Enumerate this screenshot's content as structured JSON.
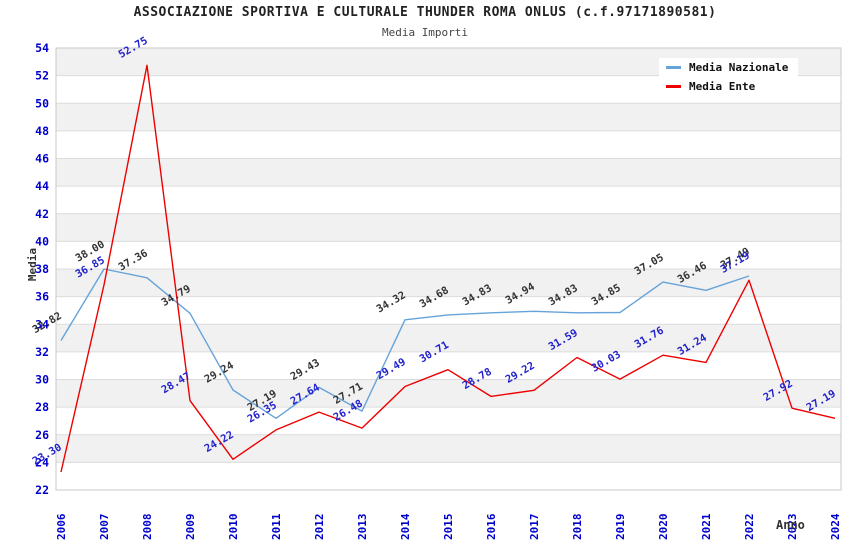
{
  "chart": {
    "title": "ASSOCIAZIONE SPORTIVA E CULTURALE THUNDER ROMA ONLUS (c.f.97171890581)",
    "subtitle": "Media Importi",
    "legend": [
      {
        "label": "Media Nazionale",
        "color": "#66a3d9"
      },
      {
        "label": "Media Ente",
        "color": "#ee0000"
      }
    ]
  },
  "chart_data": {
    "type": "line",
    "x": [
      "2006",
      "2007",
      "2008",
      "2009",
      "2010",
      "2011",
      "2012",
      "2013",
      "2014",
      "2015",
      "2016",
      "2017",
      "2018",
      "2019",
      "2020",
      "2021",
      "2022",
      "2023",
      "2024"
    ],
    "series": [
      {
        "name": "Media Nazionale",
        "color": "#66a3d9",
        "label_color": "#333333",
        "values": [
          32.82,
          38.0,
          37.36,
          34.79,
          29.24,
          27.19,
          29.43,
          27.71,
          34.32,
          34.68,
          34.83,
          34.94,
          34.83,
          34.85,
          37.05,
          36.46,
          37.49,
          null,
          null
        ]
      },
      {
        "name": "Media Ente",
        "color": "#ee0000",
        "label_color": "#2222cc",
        "values": [
          23.3,
          36.85,
          52.75,
          28.47,
          24.22,
          26.35,
          27.64,
          26.48,
          29.49,
          30.71,
          28.78,
          29.22,
          31.59,
          30.03,
          31.76,
          31.24,
          37.19,
          27.92,
          27.19
        ]
      }
    ],
    "title": "Media Importi",
    "xlabel": "Anno",
    "ylabel": "Media",
    "ylim": [
      22,
      54
    ],
    "ytick_step": 2,
    "grid": true,
    "legend_position": "top-right",
    "band_colors": [
      "#f1f1f1",
      "#ffffff"
    ],
    "gridline_color": "#dcdcdc",
    "border_color": "#c9c9c9",
    "axis_tick_color": "#0000cc"
  }
}
